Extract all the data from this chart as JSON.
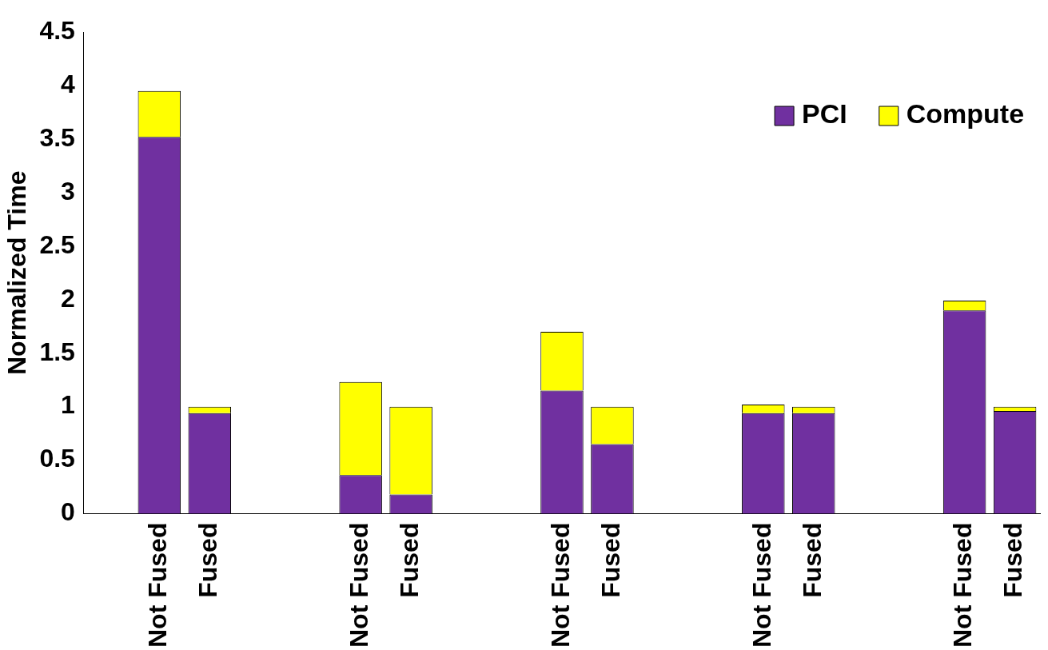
{
  "chart_data": {
    "type": "bar",
    "stacked": true,
    "ylabel": "Normalized Time",
    "categories": [
      null,
      "Not Fused",
      "Fused",
      null,
      null,
      "Not Fused",
      "Fused",
      null,
      null,
      "Not Fused",
      "Fused",
      null,
      null,
      "Not Fused",
      "Fused",
      null,
      null,
      "Not Fused",
      "Fused"
    ],
    "series": [
      {
        "name": "PCI",
        "color": "#7030a0",
        "values": [
          null,
          3.52,
          0.94,
          null,
          null,
          0.36,
          0.18,
          null,
          null,
          1.15,
          0.65,
          null,
          null,
          0.94,
          0.94,
          null,
          null,
          1.9,
          0.96
        ]
      },
      {
        "name": "Compute",
        "color": "#ffff00",
        "values": [
          null,
          0.43,
          0.06,
          null,
          null,
          0.87,
          0.82,
          null,
          null,
          0.55,
          0.35,
          null,
          null,
          0.08,
          0.06,
          null,
          null,
          0.09,
          0.04
        ]
      }
    ],
    "ylim": [
      0,
      4.5
    ],
    "yticks": [
      0,
      0.5,
      1,
      1.5,
      2,
      2.5,
      3,
      3.5,
      4,
      4.5
    ],
    "grid": false,
    "legend": "top right"
  }
}
